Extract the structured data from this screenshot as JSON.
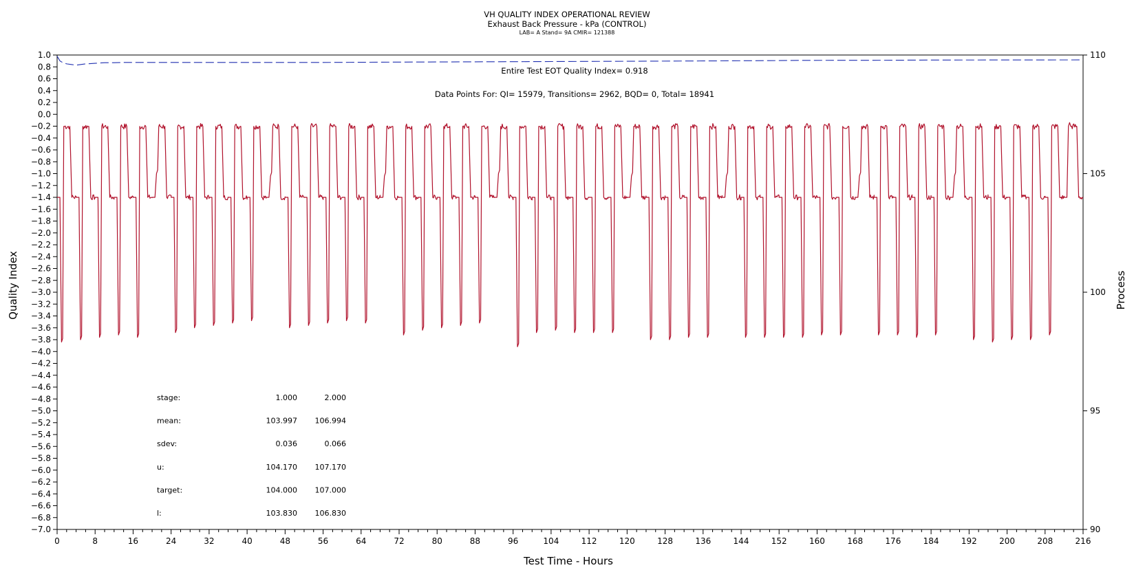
{
  "header": {
    "title": "VH QUALITY INDEX OPERATIONAL REVIEW",
    "subtitle": "Exhaust Back Pressure - kPa (CONTROL)",
    "info": "LAB= A Stand= 9A CMIR= 121388"
  },
  "chart_data": {
    "type": "line",
    "title": "VH QUALITY INDEX OPERATIONAL REVIEW",
    "subtitle": "Exhaust Back Pressure - kPa (CONTROL)",
    "xlabel": "Test Time - Hours",
    "ylabel": "Quality Index",
    "y2label": "Process",
    "xlim": [
      0,
      216
    ],
    "ylim": [
      -7.0,
      1.0
    ],
    "y2lim": [
      90,
      110
    ],
    "x_ticks": [
      0,
      8,
      16,
      24,
      32,
      40,
      48,
      56,
      64,
      72,
      80,
      88,
      96,
      104,
      112,
      120,
      128,
      136,
      144,
      152,
      160,
      168,
      176,
      184,
      192,
      200,
      208,
      216
    ],
    "y_ticks": [
      1.0,
      0.8,
      0.6,
      0.4,
      0.2,
      0.0,
      -0.2,
      -0.4,
      -0.6,
      -0.8,
      -1.0,
      -1.2,
      -1.4,
      -1.6,
      -1.8,
      -2.0,
      -2.2,
      -2.4,
      -2.6,
      -2.8,
      -3.0,
      -3.2,
      -3.4,
      -3.6,
      -3.8,
      -4.0,
      -4.2,
      -4.4,
      -4.6,
      -4.8,
      -5.0,
      -5.2,
      -5.4,
      -5.6,
      -5.8,
      -6.0,
      -6.2,
      -6.4,
      -6.6,
      -6.8,
      -7.0
    ],
    "y2_ticks": [
      110,
      105,
      100,
      95,
      90
    ],
    "grid": false,
    "annotations": [
      "Entire Test EOT Quality Index=   0.918",
      "Data Points For: QI= 15979, Transitions=  2962, BQD=     0, Total= 18941"
    ],
    "stats_table": {
      "rows": [
        {
          "label": "stage:",
          "values": [
            "1.000",
            "2.000"
          ]
        },
        {
          "label": "mean:",
          "values": [
            "103.997",
            "106.994"
          ]
        },
        {
          "label": "sdev:",
          "values": [
            "0.036",
            "0.066"
          ]
        },
        {
          "label": "u:",
          "values": [
            "104.170",
            "107.170"
          ]
        },
        {
          "label": "target:",
          "values": [
            "104.000",
            "107.000"
          ]
        },
        {
          "label": "l:",
          "values": [
            "103.830",
            "106.830"
          ]
        }
      ]
    },
    "series": [
      {
        "name": "Quality Index",
        "axis": "left",
        "style": "dashed",
        "color": "#1f2fb0",
        "x": [
          0.0,
          0.3,
          0.6,
          1.0,
          2.0,
          3.0,
          4.0,
          5.0,
          6.0,
          8.0,
          10.0,
          12.0,
          14.0,
          24.0,
          40.0,
          56.0,
          72.0,
          88.0,
          104.0,
          120.0,
          136.0,
          150.0,
          156.0,
          176.0,
          184.0,
          200.0,
          216.0
        ],
        "values": [
          0.98,
          0.94,
          0.9,
          0.88,
          0.85,
          0.84,
          0.83,
          0.84,
          0.85,
          0.86,
          0.87,
          0.87,
          0.875,
          0.875,
          0.875,
          0.875,
          0.88,
          0.885,
          0.89,
          0.895,
          0.9,
          0.905,
          0.91,
          0.912,
          0.915,
          0.916,
          0.918
        ]
      },
      {
        "name": "Exhaust Back Pressure",
        "axis": "right",
        "style": "solid",
        "color": "#b0102a",
        "cycle_hours": 4.0,
        "high_level": 106.99,
        "low_level": 104.0,
        "cycle_start_hours": [
          0,
          4,
          8,
          12,
          16,
          20,
          24,
          28,
          32,
          36,
          40,
          44,
          48,
          52,
          56,
          60,
          64,
          68,
          72,
          76,
          80,
          84,
          88,
          92,
          96,
          100,
          104,
          108,
          112,
          116,
          120,
          124,
          128,
          132,
          136,
          140,
          144,
          148,
          152,
          156,
          160,
          164,
          168,
          172,
          176,
          180,
          184,
          188,
          192,
          196,
          200,
          204,
          208,
          212
        ],
        "trough_values": [
          97.9,
          98.0,
          98.1,
          98.2,
          98.1,
          105.0,
          98.3,
          98.5,
          98.6,
          98.7,
          98.8,
          104.9,
          98.5,
          98.6,
          98.7,
          98.8,
          98.7,
          104.9,
          98.2,
          98.4,
          98.5,
          98.6,
          98.7,
          105.0,
          97.7,
          98.3,
          98.4,
          98.3,
          98.3,
          98.3,
          104.9,
          98.0,
          98.0,
          98.1,
          98.1,
          104.9,
          98.1,
          98.1,
          98.1,
          98.1,
          98.2,
          98.2,
          104.9,
          98.2,
          98.2,
          98.1,
          98.2,
          104.9,
          98.0,
          97.9,
          98.0,
          98.0,
          98.2,
          107.0
        ]
      }
    ]
  }
}
